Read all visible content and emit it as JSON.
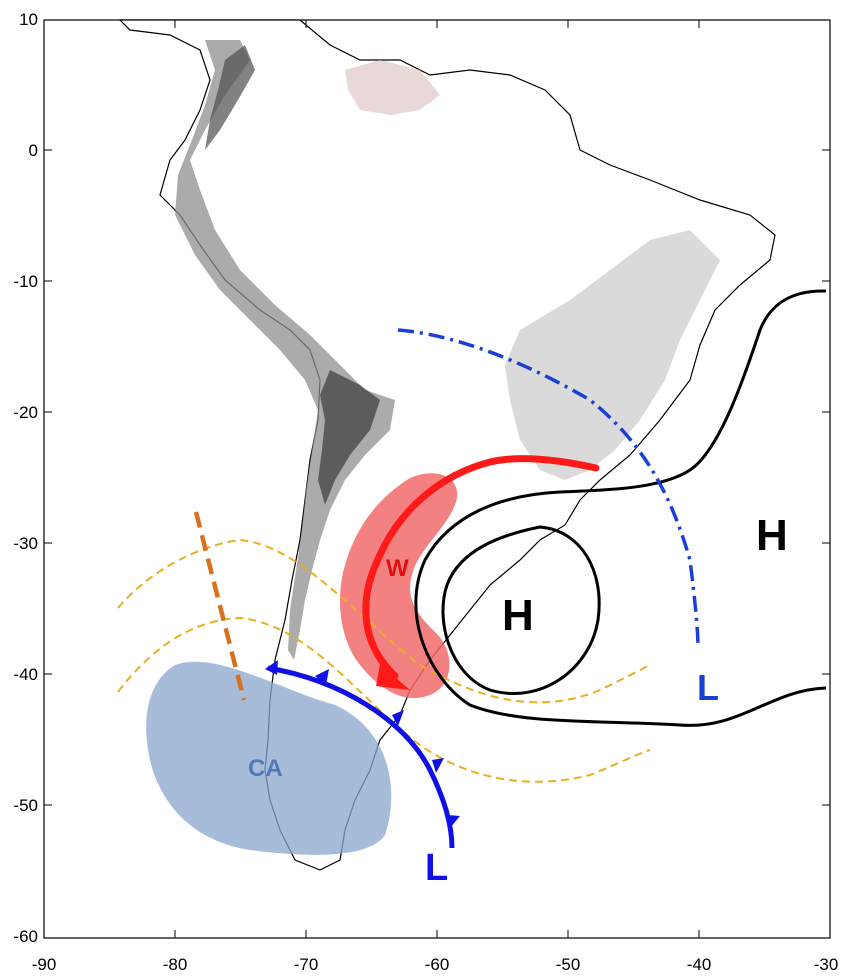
{
  "axes": {
    "x_ticks": [
      "-90",
      "-80",
      "-70",
      "-60",
      "-50",
      "-40",
      "-30"
    ],
    "y_ticks": [
      "10",
      "0",
      "-10",
      "-20",
      "-30",
      "-40",
      "-50",
      "-60"
    ]
  },
  "labels": {
    "warm_air": "W",
    "cold_air": "CA",
    "high_offshore": "H",
    "high_atlantic": "H",
    "low_trough": "L",
    "low_front": "L"
  },
  "colors": {
    "warm_arrow": "#ff1a1a",
    "warm_region": "#f26b6b",
    "cold_front": "#1010e6",
    "cold_region": "#8aa6cc",
    "trough": "#1a3fd6",
    "jet": "#e8b020",
    "orography_ridge": "#d9701f",
    "isobar": "#000000"
  },
  "icons": [
    "cold-front-triangle-icon"
  ]
}
